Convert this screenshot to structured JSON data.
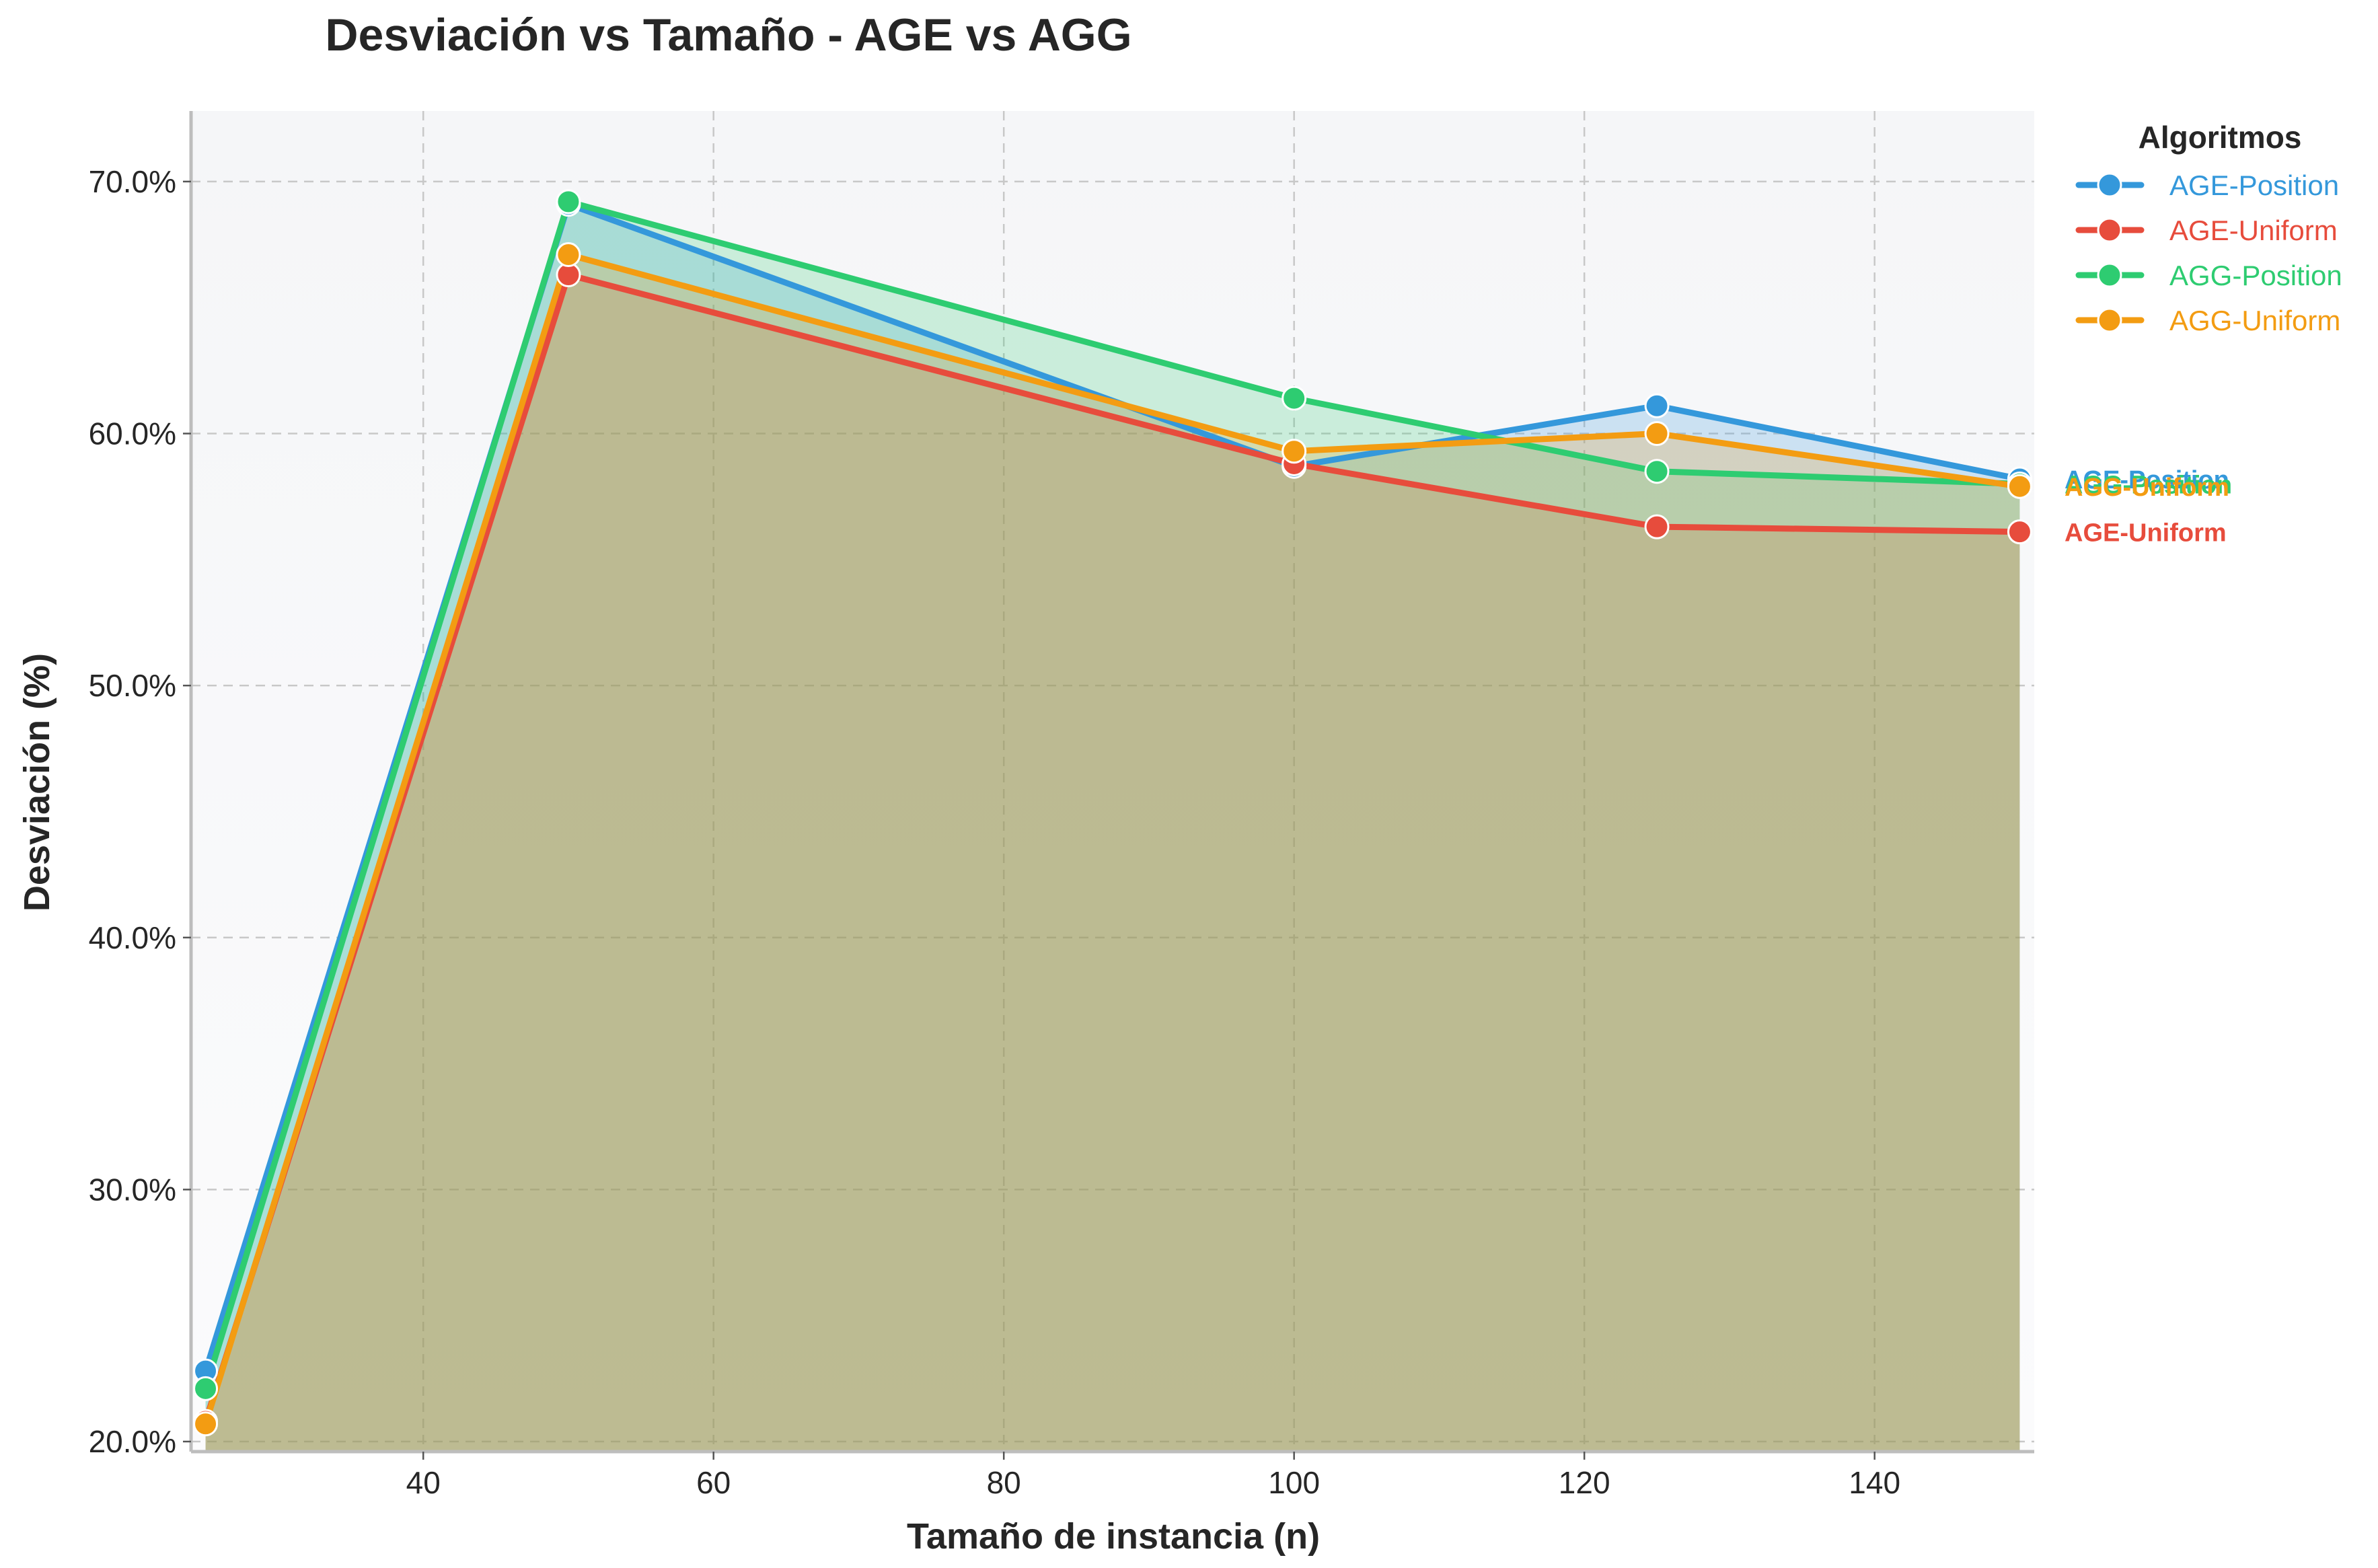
{
  "chart_data": {
    "type": "area",
    "title": "Desviación vs Tamaño - AGE vs AGG",
    "xlabel": "Tamaño de instancia (n)",
    "ylabel": "Desviación (%)",
    "xlim": [
      24,
      151
    ],
    "ylim": [
      19.6,
      72.8
    ],
    "x_ticks": [
      40,
      60,
      80,
      100,
      120,
      140
    ],
    "y_ticks": [
      20,
      30,
      40,
      50,
      60,
      70
    ],
    "y_tick_labels": [
      "20.0%",
      "30.0%",
      "40.0%",
      "50.0%",
      "60.0%",
      "70.0%"
    ],
    "grid": true,
    "legend": {
      "title": "Algoritmos",
      "placement": "outside-top-right"
    },
    "x": [
      25,
      50,
      100,
      125,
      150
    ],
    "series": [
      {
        "name": "AGE-Position",
        "color": "#3498db",
        "values": [
          22.8,
          69.1,
          58.7,
          61.1,
          58.2
        ],
        "end_label": "AGE-Position"
      },
      {
        "name": "AGE-Uniform",
        "color": "#e74c3c",
        "values": [
          20.8,
          66.3,
          58.8,
          56.3,
          56.1
        ],
        "end_label": "AGE-Uniform"
      },
      {
        "name": "AGG-Position",
        "color": "#2ecc71",
        "values": [
          22.1,
          69.2,
          61.4,
          58.5,
          58.0
        ],
        "end_label": "AGG-Position"
      },
      {
        "name": "AGG-Uniform",
        "color": "#f39c12",
        "values": [
          20.7,
          67.1,
          59.3,
          60.0,
          57.9
        ],
        "end_label": "AGG-Uniform"
      }
    ]
  }
}
